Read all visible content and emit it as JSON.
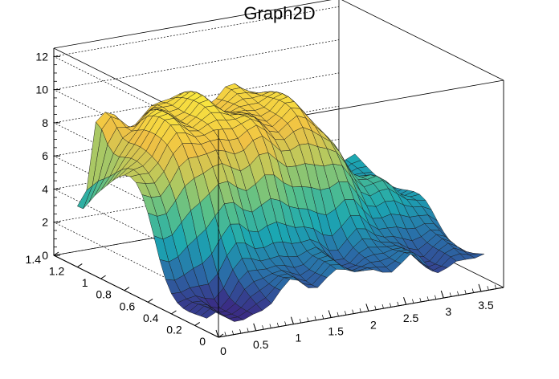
{
  "chart_data": {
    "type": "surface3d",
    "title": "Graph2D",
    "xlabel": "",
    "ylabel": "",
    "zlabel": "",
    "xlim": [
      0,
      3.8
    ],
    "ylim": [
      0,
      1.4
    ],
    "zlim": [
      0,
      12.5
    ],
    "x_ticks": [
      "0",
      "0.5",
      "1",
      "1.5",
      "2",
      "2.5",
      "3",
      "3.5"
    ],
    "y_ticks": [
      "0",
      "0.2",
      "0.4",
      "0.6",
      "0.8",
      "1",
      "1.2",
      "1.4"
    ],
    "z_ticks": [
      "0",
      "2",
      "4",
      "6",
      "8",
      "10",
      "12"
    ],
    "grid": true,
    "colormap": "viridis-like",
    "palette": [
      "#3a2d85",
      "#2a6ea8",
      "#1ba7b2",
      "#58c08a",
      "#b9c95d",
      "#f0c144",
      "#f9e93e"
    ],
    "surface_description_points": [
      {
        "x": 0.0,
        "y": 1.2,
        "z": 4.0
      },
      {
        "x": 0.3,
        "y": 1.2,
        "z": 8.5
      },
      {
        "x": 1.0,
        "y": 1.0,
        "z": 9.5
      },
      {
        "x": 2.0,
        "y": 1.0,
        "z": 9.0
      },
      {
        "x": 3.7,
        "y": 1.0,
        "z": 3.5
      },
      {
        "x": 0.0,
        "y": 0.1,
        "z": 0.5
      },
      {
        "x": 2.0,
        "y": 0.1,
        "z": 2.0
      },
      {
        "x": 3.7,
        "y": 0.1,
        "z": 1.5
      }
    ]
  }
}
